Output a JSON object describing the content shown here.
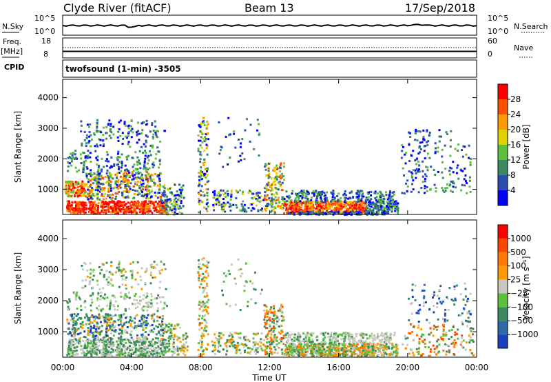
{
  "header": {
    "station": "Clyde River (fitACF)",
    "beam": "Beam 13",
    "date": "17/Sep/2018"
  },
  "panel_labels": {
    "nsky": "N.Sky",
    "nsky_top": "10^5",
    "nsky_bottom": "10^0",
    "nsearch": "N.Search",
    "nsearch_top": "10^5",
    "nsearch_bottom": "10^0",
    "freq": "Freq.",
    "freq_unit": "[MHz]",
    "freq_top": "18",
    "freq_bottom": "8",
    "nave": "Nave",
    "nave_top": "60",
    "nave_bottom": "0",
    "cpid_label": "CPID",
    "cpid_value": "twofsound (1-min) -3505"
  },
  "chart_data": [
    {
      "type": "heatmap",
      "quantity": "power",
      "ylabel": "Slant Range [km]",
      "xlabel": "Time UT",
      "x_ticks": [
        "00:00",
        "04:00",
        "08:00",
        "12:00",
        "16:00",
        "20:00",
        "00:00"
      ],
      "x_range_hours": [
        0,
        24
      ],
      "y_ticks": [
        1000,
        2000,
        3000,
        4000
      ],
      "ylim": [
        180,
        4600
      ],
      "colorbar": {
        "label": "Power [dB]",
        "ticks": [
          "4",
          "8",
          "12",
          "16",
          "20",
          "24",
          "28"
        ],
        "colors": [
          "#0000ff",
          "#2a4fb0",
          "#3c8a5f",
          "#5bc03c",
          "#e0d000",
          "#ff9a00",
          "#ff5000",
          "#ff0000"
        ]
      }
    },
    {
      "type": "heatmap",
      "quantity": "velocity",
      "ylabel": "Slant Range [km]",
      "xlabel": "Time UT",
      "x_ticks": [
        "00:00",
        "04:00",
        "08:00",
        "12:00",
        "16:00",
        "20:00",
        "00:00"
      ],
      "x_range_hours": [
        0,
        24
      ],
      "y_ticks": [
        1000,
        2000,
        3000,
        4000
      ],
      "ylim": [
        180,
        4600
      ],
      "colorbar": {
        "label": "Velocity [m s⁻¹]",
        "ticks": [
          "1000",
          "500",
          "100",
          "25",
          "−25",
          "−100",
          "−500",
          "−1000"
        ],
        "colors": [
          "#1c3fc0",
          "#2e6aa8",
          "#3c8a5f",
          "#5bc03c",
          "#c8c8c0",
          "#ff9a00",
          "#ff7a00",
          "#ff4500",
          "#ff0000"
        ]
      }
    }
  ]
}
